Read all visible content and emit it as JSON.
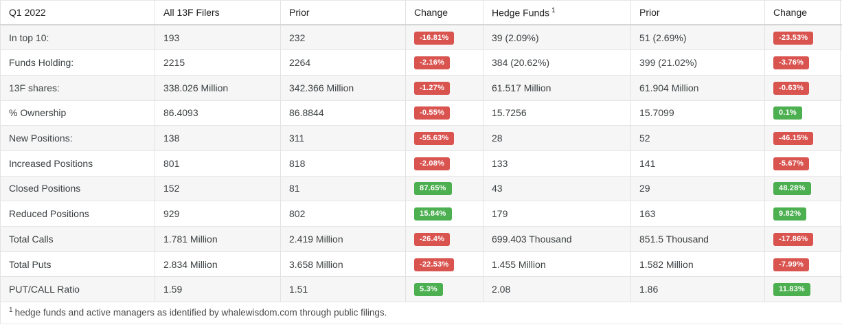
{
  "colors": {
    "positive_badge": "#4caf50",
    "negative_badge": "#d9534f",
    "stripe_row": "#f6f6f6"
  },
  "table": {
    "title_column": "Q1 2022",
    "columns": [
      {
        "label": "Q1 2022"
      },
      {
        "label": "All 13F Filers"
      },
      {
        "label": "Prior"
      },
      {
        "label": "Change"
      },
      {
        "label": "Hedge Funds",
        "superscript": "1"
      },
      {
        "label": "Prior"
      },
      {
        "label": "Change"
      }
    ],
    "rows": [
      {
        "label": "In top 10:",
        "all": "193",
        "all_prior": "232",
        "all_change": "-16.81%",
        "hf": "39 (2.09%)",
        "hf_prior": "51 (2.69%)",
        "hf_change": "-23.53%"
      },
      {
        "label": "Funds Holding:",
        "all": "2215",
        "all_prior": "2264",
        "all_change": "-2.16%",
        "hf": "384 (20.62%)",
        "hf_prior": "399 (21.02%)",
        "hf_change": "-3.76%"
      },
      {
        "label": "13F shares:",
        "all": "338.026 Million",
        "all_prior": "342.366 Million",
        "all_change": "-1.27%",
        "hf": "61.517 Million",
        "hf_prior": "61.904 Million",
        "hf_change": "-0.63%"
      },
      {
        "label": "% Ownership",
        "all": "86.4093",
        "all_prior": "86.8844",
        "all_change": "-0.55%",
        "hf": "15.7256",
        "hf_prior": "15.7099",
        "hf_change": "0.1%"
      },
      {
        "label": "New Positions:",
        "all": "138",
        "all_prior": "311",
        "all_change": "-55.63%",
        "hf": "28",
        "hf_prior": "52",
        "hf_change": "-46.15%"
      },
      {
        "label": "Increased Positions",
        "all": "801",
        "all_prior": "818",
        "all_change": "-2.08%",
        "hf": "133",
        "hf_prior": "141",
        "hf_change": "-5.67%"
      },
      {
        "label": "Closed Positions",
        "all": "152",
        "all_prior": "81",
        "all_change": "87.65%",
        "hf": "43",
        "hf_prior": "29",
        "hf_change": "48.28%"
      },
      {
        "label": "Reduced Positions",
        "all": "929",
        "all_prior": "802",
        "all_change": "15.84%",
        "hf": "179",
        "hf_prior": "163",
        "hf_change": "9.82%"
      },
      {
        "label": "Total Calls",
        "all": "1.781 Million",
        "all_prior": "2.419 Million",
        "all_change": "-26.4%",
        "hf": "699.403 Thousand",
        "hf_prior": "851.5 Thousand",
        "hf_change": "-17.86%"
      },
      {
        "label": "Total Puts",
        "all": "2.834 Million",
        "all_prior": "3.658 Million",
        "all_change": "-22.53%",
        "hf": "1.455 Million",
        "hf_prior": "1.582 Million",
        "hf_change": "-7.99%"
      },
      {
        "label": "PUT/CALL Ratio",
        "all": "1.59",
        "all_prior": "1.51",
        "all_change": "5.3%",
        "hf": "2.08",
        "hf_prior": "1.86",
        "hf_change": "11.83%"
      }
    ],
    "footnote": {
      "superscript": "1",
      "text": "hedge funds and active managers as identified by whalewisdom.com through public filings."
    }
  }
}
